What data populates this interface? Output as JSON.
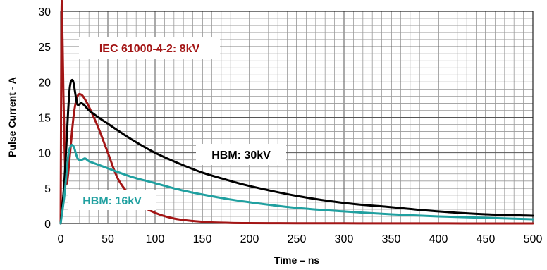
{
  "chart_data": {
    "type": "line",
    "title": "",
    "xlabel": "Time – ns",
    "ylabel": "Pulse Current - A",
    "xlim": [
      0,
      500
    ],
    "ylim": [
      0,
      30
    ],
    "xticks": [
      0,
      50,
      100,
      150,
      200,
      250,
      300,
      350,
      400,
      450,
      500
    ],
    "yticks": [
      0,
      5,
      10,
      15,
      20,
      25,
      30
    ],
    "grid": true,
    "legend": "none",
    "annotations": [
      {
        "text": "IEC 61000-4-2: 8kV",
        "color": "#a31515"
      },
      {
        "text": "HBM: 30kV",
        "color": "#000000"
      },
      {
        "text": "HBM: 16kV",
        "color": "#20a0a0"
      }
    ],
    "series": [
      {
        "color": "#a31515",
        "x": [
          0,
          1,
          2,
          3,
          5,
          7,
          10,
          14,
          18,
          22,
          26,
          30,
          40,
          50,
          60,
          70,
          80,
          100,
          120,
          140,
          160,
          180,
          200,
          250,
          300,
          350,
          400,
          450,
          500
        ],
        "y": [
          0,
          30,
          26,
          18,
          7,
          6,
          10,
          15.5,
          18,
          18.2,
          17.5,
          16.5,
          13.5,
          10,
          6.5,
          4.5,
          3,
          1.5,
          0.7,
          0.35,
          0.15,
          0.08,
          0.05,
          0.03,
          0.02,
          0.01,
          0.01,
          0,
          0
        ]
      },
      {
        "color": "#000000",
        "x": [
          0,
          4,
          8,
          10,
          13,
          16,
          18,
          22,
          26,
          30,
          40,
          50,
          75,
          100,
          125,
          150,
          175,
          200,
          250,
          300,
          350,
          400,
          450,
          500
        ],
        "y": [
          0,
          6,
          16,
          19.5,
          20.2,
          18,
          16.8,
          17,
          16.6,
          16,
          15,
          14.1,
          11.9,
          10,
          8.5,
          7.2,
          6.2,
          5.3,
          3.9,
          2.9,
          2.3,
          1.7,
          1.3,
          1.1
        ]
      },
      {
        "color": "#20a0a0",
        "x": [
          0,
          4,
          8,
          11,
          14,
          18,
          22,
          26,
          30,
          40,
          50,
          75,
          100,
          125,
          150,
          175,
          200,
          250,
          300,
          350,
          400,
          450,
          500
        ],
        "y": [
          0,
          4,
          9.5,
          11,
          10.8,
          9.2,
          9,
          9.2,
          8.8,
          8.3,
          7.8,
          6.6,
          5.7,
          4.8,
          4.1,
          3.5,
          3,
          2.2,
          1.7,
          1.3,
          1,
          0.8,
          0.6
        ]
      }
    ]
  }
}
